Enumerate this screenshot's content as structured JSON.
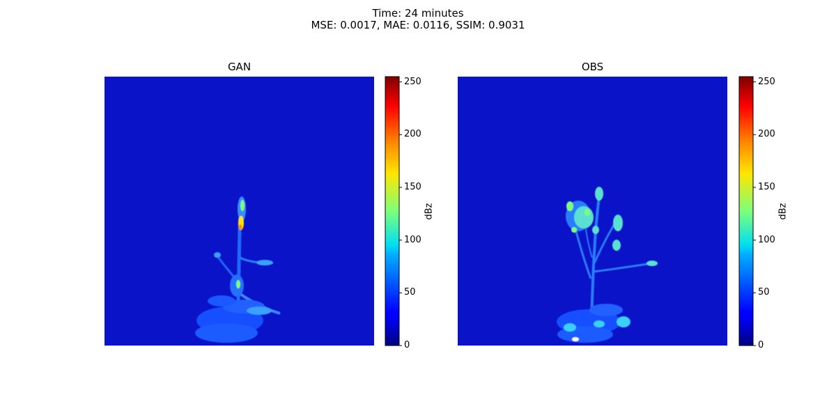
{
  "title_line1": "Time: 24 minutes",
  "title_line2": "MSE: 0.0017, MAE: 0.0116, SSIM: 0.9031",
  "chart_data": {
    "type": "heatmap",
    "colormap": "jet",
    "panels": [
      {
        "title": "GAN",
        "colorbar_label": "dBz"
      },
      {
        "title": "OBS",
        "colorbar_label": "dBz"
      }
    ],
    "colorbar": {
      "vmin": 0,
      "vmax": 255,
      "ticks": [
        0,
        50,
        100,
        150,
        200,
        250
      ]
    },
    "axes_visible": false
  }
}
